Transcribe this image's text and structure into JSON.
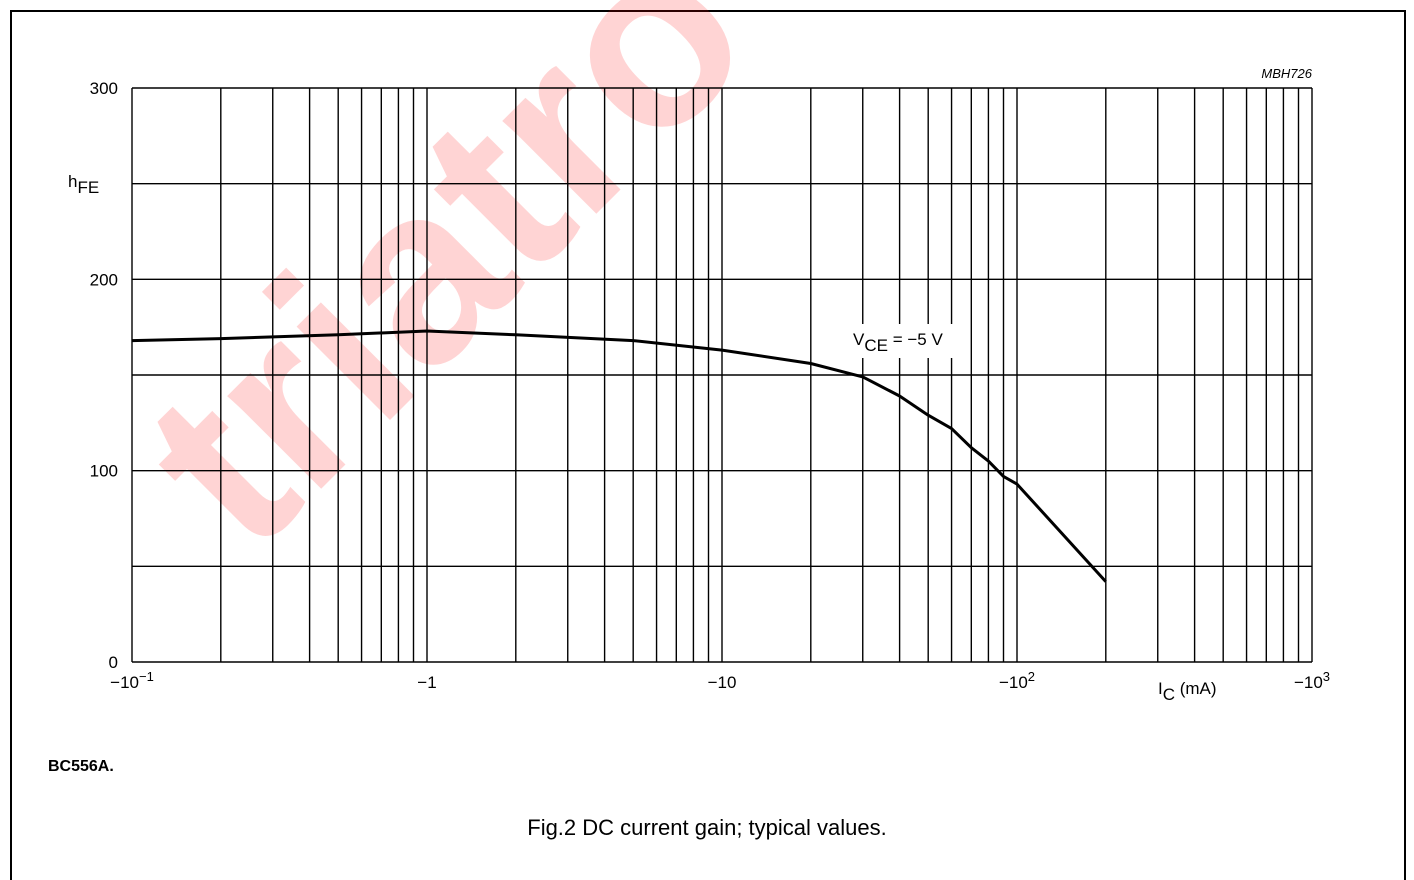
{
  "chart_data": {
    "type": "line",
    "title": "Fig.2  DC current gain; typical values.",
    "part_number": "BC556A.",
    "figure_ref": "MBH726",
    "watermark": "triatro",
    "ylabel": "hFE",
    "ylabel_main": "h",
    "ylabel_sub": "FE",
    "xlabel": "IC (mA)",
    "xlabel_main": "I",
    "xlabel_sub": "C",
    "xlabel_unit": " (mA)",
    "x_scale": "log",
    "xlim": [
      -0.1,
      -1000
    ],
    "ylim": [
      0,
      300
    ],
    "grid": true,
    "x_ticks": [
      {
        "value": -0.1,
        "base": "−10",
        "exp": "−1"
      },
      {
        "value": -1,
        "base": "−1",
        "exp": ""
      },
      {
        "value": -10,
        "base": "−10",
        "exp": ""
      },
      {
        "value": -100,
        "base": "−10",
        "exp": "2"
      },
      {
        "value": -1000,
        "base": "−10",
        "exp": "3"
      }
    ],
    "y_ticks": [
      0,
      100,
      200,
      300
    ],
    "series": [
      {
        "annotation": "VCE = −5 V",
        "annotation_main": "V",
        "annotation_sub": "CE",
        "annotation_rest": " = −5 V",
        "x": [
          -0.1,
          -0.2,
          -0.5,
          -1,
          -2,
          -5,
          -10,
          -20,
          -30,
          -40,
          -50,
          -60,
          -70,
          -80,
          -90,
          -100,
          -200
        ],
        "y": [
          168,
          169,
          171,
          173,
          171,
          168,
          163,
          156,
          149,
          139,
          129,
          122,
          112,
          105,
          97,
          93,
          42
        ]
      }
    ]
  }
}
